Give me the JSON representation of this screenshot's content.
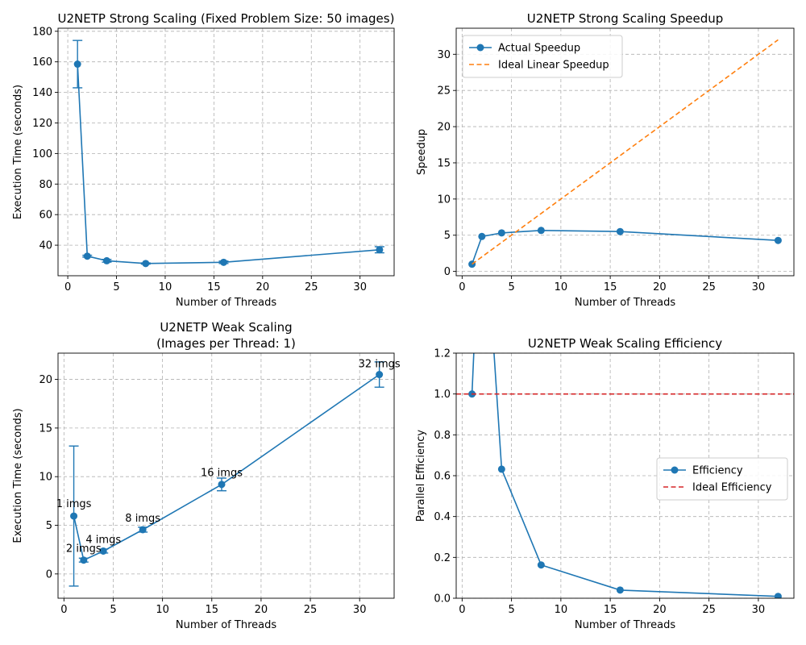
{
  "chart_data": [
    {
      "id": "strong",
      "type": "line",
      "title": "U2NETP Strong Scaling (Fixed Problem Size: 50 images)",
      "xlabel": "Number of Threads",
      "ylabel": "Execution Time (seconds)",
      "xlim": [
        -1.0,
        33.5
      ],
      "ylim": [
        20,
        182
      ],
      "xticks": [
        0,
        5,
        10,
        15,
        20,
        25,
        30
      ],
      "yticks": [
        40,
        60,
        80,
        100,
        120,
        140,
        160,
        180
      ],
      "grid": true,
      "series": [
        {
          "x": [
            1,
            2,
            4,
            8,
            16,
            32
          ],
          "y": [
            158.5,
            32.8,
            29.8,
            28.0,
            28.8,
            37.0
          ],
          "err": [
            15.5,
            0.6,
            0.9,
            0.4,
            0.8,
            2.0
          ],
          "color": "#1f77b4",
          "style": "solid",
          "marker": true
        }
      ]
    },
    {
      "id": "speedup",
      "type": "line",
      "title": "U2NETP Strong Scaling Speedup",
      "xlabel": "Number of Threads",
      "ylabel": "Speedup",
      "xlim": [
        -0.6,
        33.6
      ],
      "ylim": [
        -0.6,
        33.6
      ],
      "xticks": [
        0,
        5,
        10,
        15,
        20,
        25,
        30
      ],
      "yticks": [
        0,
        5,
        10,
        15,
        20,
        25,
        30
      ],
      "grid": true,
      "legend": "top-left",
      "series": [
        {
          "name": "Actual Speedup",
          "x": [
            1,
            2,
            4,
            8,
            16,
            32
          ],
          "y": [
            1.0,
            4.83,
            5.32,
            5.66,
            5.5,
            4.28
          ],
          "color": "#1f77b4",
          "style": "solid",
          "marker": true
        },
        {
          "name": "Ideal Linear Speedup",
          "x": [
            1,
            32
          ],
          "y": [
            1,
            32
          ],
          "color": "#ff7f0e",
          "style": "dashed",
          "marker": false
        }
      ]
    },
    {
      "id": "weak",
      "type": "line",
      "title": "U2NETP Weak Scaling",
      "subtitle": "(Images per Thread: 1)",
      "xlabel": "Number of Threads",
      "ylabel": "Execution Time (seconds)",
      "xlim": [
        -0.6,
        33.5
      ],
      "ylim": [
        -2.5,
        22.7
      ],
      "xticks": [
        0,
        5,
        10,
        15,
        20,
        25,
        30
      ],
      "yticks": [
        0,
        5,
        10,
        15,
        20
      ],
      "grid": true,
      "series": [
        {
          "x": [
            1,
            2,
            4,
            8,
            16,
            32
          ],
          "y": [
            5.95,
            1.42,
            2.35,
            4.55,
            9.2,
            20.5
          ],
          "err": [
            7.2,
            0.2,
            0.2,
            0.25,
            0.65,
            1.3
          ],
          "color": "#1f77b4",
          "style": "solid",
          "marker": true
        }
      ],
      "annotations": [
        {
          "x": 1,
          "y": 7.2,
          "text": "1 imgs"
        },
        {
          "x": 2,
          "y": 2.6,
          "text": "2 imgs"
        },
        {
          "x": 4,
          "y": 3.5,
          "text": "4 imgs"
        },
        {
          "x": 8,
          "y": 5.7,
          "text": "8 imgs"
        },
        {
          "x": 16,
          "y": 10.4,
          "text": "16 imgs"
        },
        {
          "x": 32,
          "y": 21.6,
          "text": "32 imgs"
        }
      ]
    },
    {
      "id": "efficiency",
      "type": "line",
      "title": "U2NETP Weak Scaling Efficiency",
      "xlabel": "Number of Threads",
      "ylabel": "Parallel Efficiency",
      "xlim": [
        -0.6,
        33.6
      ],
      "ylim": [
        0,
        1.2
      ],
      "xticks": [
        0,
        5,
        10,
        15,
        20,
        25,
        30
      ],
      "yticks": [
        0.0,
        0.2,
        0.4,
        0.6,
        0.8,
        1.0,
        1.2
      ],
      "ytick_labels": [
        "0.0",
        "0.2",
        "0.4",
        "0.6",
        "0.8",
        "1.0",
        "1.2"
      ],
      "grid": true,
      "legend": "center-right",
      "series": [
        {
          "name": "Efficiency",
          "x": [
            1,
            2,
            4,
            8,
            16,
            32
          ],
          "y": [
            1.0,
            2.1,
            0.632,
            0.163,
            0.04,
            0.009
          ],
          "color": "#1f77b4",
          "style": "solid",
          "marker": true
        },
        {
          "name": "Ideal Efficiency",
          "x": [
            -0.6,
            33.6
          ],
          "y": [
            1.0,
            1.0
          ],
          "color": "#d62728",
          "style": "dashed",
          "marker": false
        }
      ]
    }
  ]
}
